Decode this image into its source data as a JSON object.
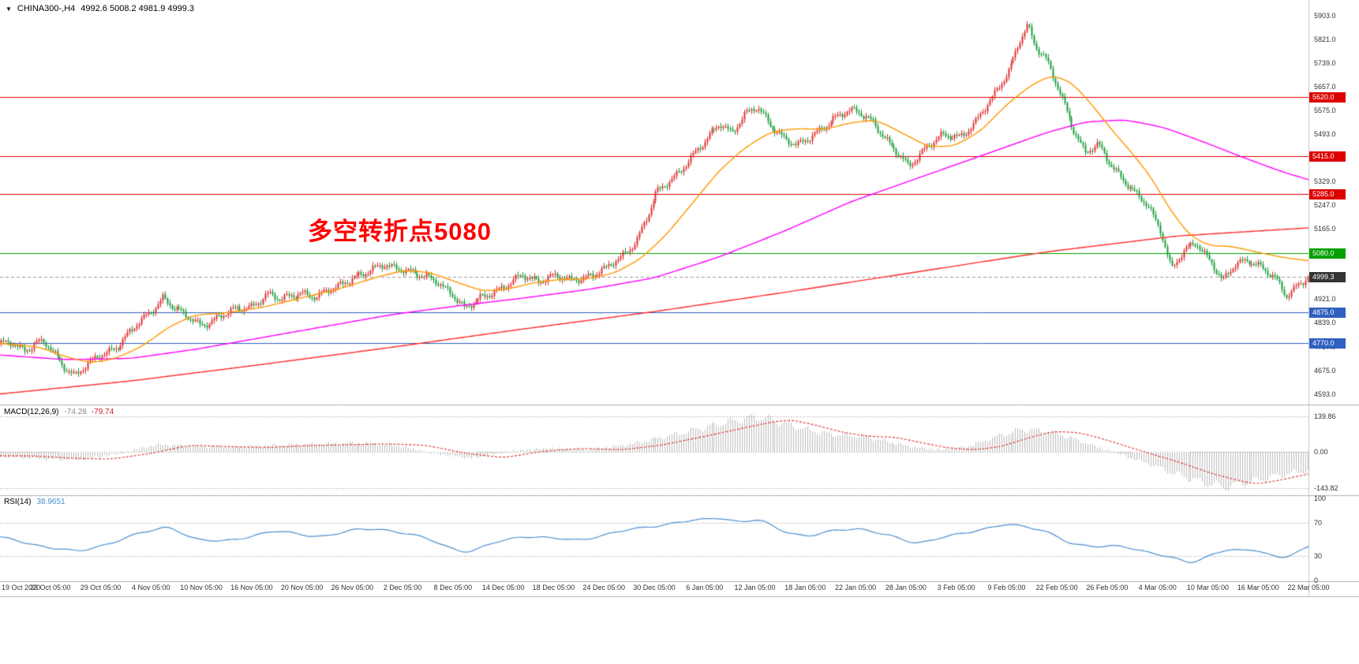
{
  "window": {
    "symbol_label": "CHINA300-,H4",
    "ohlc_text": "4992.6 5008.2 4981.9 4999.3",
    "dropdown_icon": "▼"
  },
  "annotation": {
    "text": "多空转折点5080",
    "color": "#ff0000"
  },
  "chart_data": {
    "type": "candlestick",
    "symbol": "CHINA300-",
    "timeframe": "H4",
    "quote": {
      "open": 4992.6,
      "high": 5008.2,
      "low": 4981.9,
      "close": 4999.3
    },
    "colors": {
      "up": "#e03131",
      "down": "#1a9e3c",
      "ma_fast": "#ff9800",
      "ma_mid": "#ff00ff",
      "ma_slow": "#ff2a2a",
      "current": "#333333",
      "macd_hist": "#bdbdbd",
      "macd_signal": "#e03131",
      "rsi": "#4a8fd0"
    },
    "price_axis": {
      "min": 4570,
      "max": 5935,
      "ticks": [
        [
          "5903.0",
          5903
        ],
        [
          "5821.0",
          5821
        ],
        [
          "5739.0",
          5739
        ],
        [
          "5657.0",
          5657
        ],
        [
          "5575.0",
          5575
        ],
        [
          "5493.0",
          5493
        ],
        [
          "5411.0",
          5411
        ],
        [
          "5329.0",
          5329
        ],
        [
          "5247.0",
          5247
        ],
        [
          "5165.0",
          5165
        ],
        [
          "5083.0",
          5083
        ],
        [
          "5001.0",
          5001
        ],
        [
          "4921.0",
          4921
        ],
        [
          "4839.0",
          4839
        ],
        [
          "4757.0",
          4757
        ],
        [
          "4675.0",
          4675
        ],
        [
          "4593.0",
          4593
        ]
      ]
    },
    "hlines": [
      {
        "label": "5620.0",
        "price": 5620.0,
        "color": "#dd0000"
      },
      {
        "label": "5415.0",
        "price": 5415.0,
        "color": "#dd0000"
      },
      {
        "label": "5285.0",
        "price": 5285.0,
        "color": "#dd0000"
      },
      {
        "label": "5080.0",
        "price": 5080.0,
        "color": "#00a000"
      },
      {
        "label": "4875.0",
        "price": 4875.0,
        "color": "#3060c0"
      },
      {
        "label": "4770.0",
        "price": 4770.0,
        "color": "#3060c0"
      }
    ],
    "current_price": {
      "label": "4999.3",
      "value": 4999.3
    },
    "x_labels": [
      "19 Oct 2020",
      "23 Oct 05:00",
      "29 Oct 05:00",
      "4 Nov 05:00",
      "10 Nov 05:00",
      "16 Nov 05:00",
      "20 Nov 05:00",
      "26 Nov 05:00",
      "2 Dec 05:00",
      "8 Dec 05:00",
      "14 Dec 05:00",
      "18 Dec 05:00",
      "24 Dec 05:00",
      "30 Dec 05:00",
      "6 Jan 05:00",
      "12 Jan 05:00",
      "18 Jan 05:00",
      "22 Jan 05:00",
      "28 Jan 05:00",
      "3 Feb 05:00",
      "9 Feb 05:00",
      "22 Feb 05:00",
      "26 Feb 05:00",
      "4 Mar 05:00",
      "10 Mar 05:00",
      "16 Mar 05:00",
      "22 Mar 05:00"
    ],
    "price_path": [
      [
        0.0,
        4762
      ],
      [
        0.01,
        4775
      ],
      [
        0.02,
        4745
      ],
      [
        0.03,
        4770
      ],
      [
        0.038,
        4755
      ],
      [
        0.048,
        4700
      ],
      [
        0.058,
        4658
      ],
      [
        0.068,
        4692
      ],
      [
        0.077,
        4725
      ],
      [
        0.09,
        4760
      ],
      [
        0.1,
        4805
      ],
      [
        0.115,
        4872
      ],
      [
        0.125,
        4930
      ],
      [
        0.132,
        4900
      ],
      [
        0.14,
        4868
      ],
      [
        0.154,
        4832
      ],
      [
        0.165,
        4855
      ],
      [
        0.178,
        4878
      ],
      [
        0.193,
        4898
      ],
      [
        0.205,
        4940
      ],
      [
        0.215,
        4915
      ],
      [
        0.231,
        4948
      ],
      [
        0.243,
        4928
      ],
      [
        0.258,
        4962
      ],
      [
        0.27,
        5000
      ],
      [
        0.282,
        5012
      ],
      [
        0.295,
        5040
      ],
      [
        0.309,
        5028
      ],
      [
        0.322,
        4998
      ],
      [
        0.335,
        4985
      ],
      [
        0.347,
        4938
      ],
      [
        0.356,
        4882
      ],
      [
        0.368,
        4925
      ],
      [
        0.378,
        4952
      ],
      [
        0.386,
        4962
      ],
      [
        0.4,
        5000
      ],
      [
        0.412,
        4988
      ],
      [
        0.424,
        5002
      ],
      [
        0.436,
        4982
      ],
      [
        0.45,
        5004
      ],
      [
        0.463,
        5022
      ],
      [
        0.475,
        5062
      ],
      [
        0.487,
        5128
      ],
      [
        0.495,
        5205
      ],
      [
        0.502,
        5282
      ],
      [
        0.515,
        5340
      ],
      [
        0.527,
        5405
      ],
      [
        0.54,
        5465
      ],
      [
        0.551,
        5532
      ],
      [
        0.56,
        5502
      ],
      [
        0.57,
        5558
      ],
      [
        0.579,
        5582
      ],
      [
        0.59,
        5525
      ],
      [
        0.6,
        5482
      ],
      [
        0.61,
        5448
      ],
      [
        0.618,
        5472
      ],
      [
        0.63,
        5522
      ],
      [
        0.642,
        5558
      ],
      [
        0.656,
        5572
      ],
      [
        0.668,
        5540
      ],
      [
        0.68,
        5455
      ],
      [
        0.695,
        5382
      ],
      [
        0.708,
        5448
      ],
      [
        0.72,
        5482
      ],
      [
        0.734,
        5485
      ],
      [
        0.745,
        5530
      ],
      [
        0.76,
        5620
      ],
      [
        0.772,
        5720
      ],
      [
        0.78,
        5820
      ],
      [
        0.786,
        5868
      ],
      [
        0.792,
        5790
      ],
      [
        0.8,
        5750
      ],
      [
        0.806,
        5690
      ],
      [
        0.811,
        5640
      ],
      [
        0.82,
        5520
      ],
      [
        0.83,
        5420
      ],
      [
        0.84,
        5460
      ],
      [
        0.85,
        5390
      ],
      [
        0.859,
        5330
      ],
      [
        0.869,
        5280
      ],
      [
        0.878,
        5250
      ],
      [
        0.888,
        5160
      ],
      [
        0.896,
        5020
      ],
      [
        0.905,
        5082
      ],
      [
        0.915,
        5122
      ],
      [
        0.927,
        5048
      ],
      [
        0.935,
        4978
      ],
      [
        0.945,
        5042
      ],
      [
        0.955,
        5062
      ],
      [
        0.965,
        5032
      ],
      [
        0.975,
        4988
      ],
      [
        0.984,
        4932
      ],
      [
        0.993,
        4978
      ],
      [
        1.0,
        4999
      ]
    ],
    "ma_fast": [
      [
        0,
        4768
      ],
      [
        0.03,
        4756
      ],
      [
        0.05,
        4722
      ],
      [
        0.07,
        4700
      ],
      [
        0.09,
        4718
      ],
      [
        0.11,
        4762
      ],
      [
        0.13,
        4828
      ],
      [
        0.15,
        4868
      ],
      [
        0.17,
        4872
      ],
      [
        0.2,
        4892
      ],
      [
        0.23,
        4925
      ],
      [
        0.26,
        4958
      ],
      [
        0.29,
        5000
      ],
      [
        0.31,
        5022
      ],
      [
        0.33,
        5012
      ],
      [
        0.35,
        4978
      ],
      [
        0.37,
        4948
      ],
      [
        0.39,
        4958
      ],
      [
        0.41,
        4980
      ],
      [
        0.43,
        4990
      ],
      [
        0.45,
        4992
      ],
      [
        0.47,
        5012
      ],
      [
        0.49,
        5062
      ],
      [
        0.51,
        5148
      ],
      [
        0.53,
        5258
      ],
      [
        0.55,
        5368
      ],
      [
        0.57,
        5448
      ],
      [
        0.59,
        5502
      ],
      [
        0.61,
        5512
      ],
      [
        0.63,
        5508
      ],
      [
        0.65,
        5532
      ],
      [
        0.67,
        5542
      ],
      [
        0.69,
        5495
      ],
      [
        0.71,
        5448
      ],
      [
        0.73,
        5452
      ],
      [
        0.75,
        5505
      ],
      [
        0.77,
        5598
      ],
      [
        0.79,
        5668
      ],
      [
        0.805,
        5698
      ],
      [
        0.82,
        5668
      ],
      [
        0.835,
        5592
      ],
      [
        0.85,
        5505
      ],
      [
        0.865,
        5428
      ],
      [
        0.88,
        5342
      ],
      [
        0.895,
        5225
      ],
      [
        0.91,
        5138
      ],
      [
        0.925,
        5105
      ],
      [
        0.94,
        5105
      ],
      [
        0.955,
        5090
      ],
      [
        0.97,
        5075
      ],
      [
        0.985,
        5062
      ],
      [
        1.0,
        5055
      ]
    ],
    "ma_mid": [
      [
        0,
        4728
      ],
      [
        0.05,
        4712
      ],
      [
        0.1,
        4716
      ],
      [
        0.15,
        4748
      ],
      [
        0.2,
        4788
      ],
      [
        0.25,
        4828
      ],
      [
        0.3,
        4868
      ],
      [
        0.35,
        4898
      ],
      [
        0.4,
        4925
      ],
      [
        0.45,
        4955
      ],
      [
        0.5,
        4995
      ],
      [
        0.55,
        5068
      ],
      [
        0.6,
        5158
      ],
      [
        0.65,
        5258
      ],
      [
        0.7,
        5338
      ],
      [
        0.75,
        5418
      ],
      [
        0.8,
        5498
      ],
      [
        0.83,
        5535
      ],
      [
        0.86,
        5542
      ],
      [
        0.89,
        5515
      ],
      [
        0.92,
        5465
      ],
      [
        0.95,
        5412
      ],
      [
        0.98,
        5362
      ],
      [
        1.0,
        5335
      ]
    ],
    "ma_slow": [
      [
        0,
        4593
      ],
      [
        0.1,
        4638
      ],
      [
        0.2,
        4695
      ],
      [
        0.3,
        4755
      ],
      [
        0.4,
        4818
      ],
      [
        0.5,
        4878
      ],
      [
        0.6,
        4945
      ],
      [
        0.7,
        5015
      ],
      [
        0.8,
        5085
      ],
      [
        0.9,
        5140
      ],
      [
        1.0,
        5168
      ]
    ],
    "macd": {
      "label": "MACD(12,26,9)",
      "value_main": "-74.28",
      "value_signal": "-79.74",
      "axis": [
        [
          "139.86",
          139.86
        ],
        [
          "0.00",
          0
        ],
        [
          "-143.82",
          -143.82
        ]
      ],
      "path": [
        [
          0,
          -18
        ],
        [
          0.03,
          -28
        ],
        [
          0.06,
          -32
        ],
        [
          0.09,
          -8
        ],
        [
          0.12,
          28
        ],
        [
          0.15,
          22
        ],
        [
          0.18,
          18
        ],
        [
          0.21,
          26
        ],
        [
          0.24,
          30
        ],
        [
          0.27,
          34
        ],
        [
          0.3,
          28
        ],
        [
          0.33,
          -6
        ],
        [
          0.36,
          -26
        ],
        [
          0.39,
          2
        ],
        [
          0.42,
          14
        ],
        [
          0.45,
          8
        ],
        [
          0.48,
          28
        ],
        [
          0.51,
          62
        ],
        [
          0.54,
          98
        ],
        [
          0.565,
          128
        ],
        [
          0.58,
          138
        ],
        [
          0.6,
          112
        ],
        [
          0.62,
          82
        ],
        [
          0.64,
          66
        ],
        [
          0.66,
          62
        ],
        [
          0.68,
          38
        ],
        [
          0.7,
          16
        ],
        [
          0.72,
          8
        ],
        [
          0.74,
          22
        ],
        [
          0.76,
          58
        ],
        [
          0.78,
          88
        ],
        [
          0.8,
          82
        ],
        [
          0.82,
          52
        ],
        [
          0.84,
          16
        ],
        [
          0.86,
          -18
        ],
        [
          0.88,
          -52
        ],
        [
          0.9,
          -92
        ],
        [
          0.92,
          -122
        ],
        [
          0.935,
          -140
        ],
        [
          0.95,
          -126
        ],
        [
          0.965,
          -108
        ],
        [
          0.98,
          -90
        ],
        [
          1.0,
          -74
        ]
      ]
    },
    "rsi": {
      "label": "RSI(14)",
      "value": "38.9651",
      "axis": [
        [
          "100",
          100
        ],
        [
          "70",
          70
        ],
        [
          "30",
          30
        ],
        [
          "0",
          0
        ]
      ],
      "grid": [
        70,
        30
      ],
      "path": [
        [
          0,
          52
        ],
        [
          0.02,
          46
        ],
        [
          0.04,
          40
        ],
        [
          0.06,
          34
        ],
        [
          0.08,
          44
        ],
        [
          0.1,
          54
        ],
        [
          0.12,
          62
        ],
        [
          0.13,
          67
        ],
        [
          0.15,
          49
        ],
        [
          0.17,
          47
        ],
        [
          0.19,
          54
        ],
        [
          0.21,
          60
        ],
        [
          0.23,
          56
        ],
        [
          0.25,
          54
        ],
        [
          0.27,
          61
        ],
        [
          0.29,
          64
        ],
        [
          0.31,
          57
        ],
        [
          0.33,
          49
        ],
        [
          0.35,
          37
        ],
        [
          0.36,
          34
        ],
        [
          0.38,
          47
        ],
        [
          0.4,
          55
        ],
        [
          0.42,
          51
        ],
        [
          0.44,
          49
        ],
        [
          0.46,
          55
        ],
        [
          0.48,
          61
        ],
        [
          0.5,
          67
        ],
        [
          0.52,
          71
        ],
        [
          0.54,
          74
        ],
        [
          0.55,
          78
        ],
        [
          0.565,
          71
        ],
        [
          0.58,
          74
        ],
        [
          0.6,
          59
        ],
        [
          0.62,
          54
        ],
        [
          0.64,
          61
        ],
        [
          0.66,
          64
        ],
        [
          0.68,
          54
        ],
        [
          0.7,
          44
        ],
        [
          0.72,
          54
        ],
        [
          0.74,
          57
        ],
        [
          0.76,
          66
        ],
        [
          0.77,
          71
        ],
        [
          0.785,
          64
        ],
        [
          0.8,
          59
        ],
        [
          0.82,
          45
        ],
        [
          0.84,
          40
        ],
        [
          0.86,
          42
        ],
        [
          0.88,
          34
        ],
        [
          0.9,
          25
        ],
        [
          0.91,
          20
        ],
        [
          0.925,
          32
        ],
        [
          0.94,
          39
        ],
        [
          0.95,
          34
        ],
        [
          0.96,
          38
        ],
        [
          0.97,
          32
        ],
        [
          0.98,
          27
        ],
        [
          0.99,
          34
        ],
        [
          1.0,
          39
        ]
      ]
    }
  }
}
